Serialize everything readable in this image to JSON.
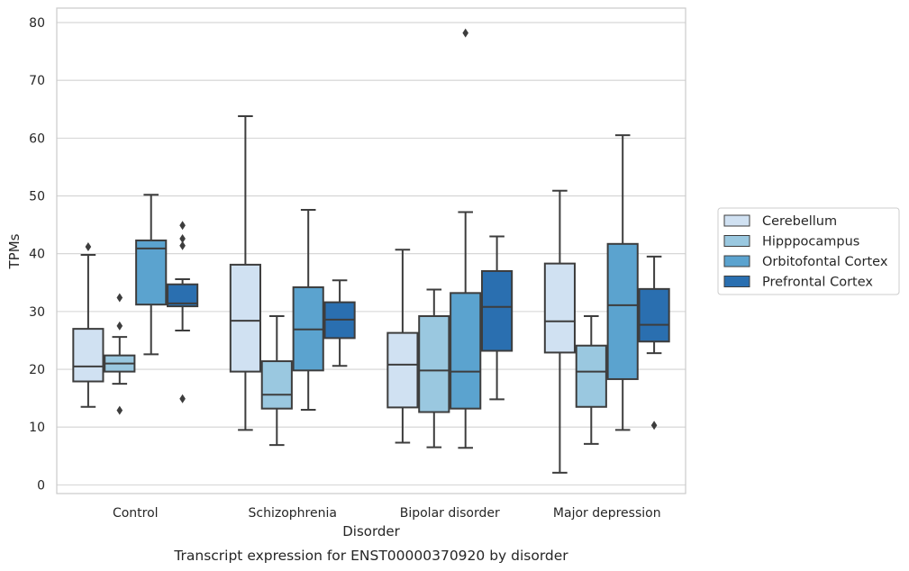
{
  "caption": "Transcript expression for ENST00000370920 by disorder",
  "chart_data": {
    "type": "box",
    "xlabel": "Disorder",
    "ylabel": "TPMs",
    "ylim": [
      -1.5,
      82.5
    ],
    "yticks": [
      0,
      10,
      20,
      30,
      40,
      50,
      60,
      70,
      80
    ],
    "grid": true,
    "legend_placement": "right",
    "categories": [
      "Control",
      "Schizophrenia",
      "Bipolar disorder",
      "Major depression"
    ],
    "series": [
      {
        "name": "Cerebellum",
        "color": "#d0e1f2",
        "boxes": [
          {
            "whisker_low": 13.5,
            "q1": 17.9,
            "median": 20.5,
            "q3": 27.0,
            "whisker_high": 39.8,
            "outliers": [
              41.2
            ]
          },
          {
            "whisker_low": 9.5,
            "q1": 19.6,
            "median": 28.4,
            "q3": 38.1,
            "whisker_high": 63.8,
            "outliers": []
          },
          {
            "whisker_low": 7.3,
            "q1": 13.4,
            "median": 20.8,
            "q3": 26.3,
            "whisker_high": 40.7,
            "outliers": []
          },
          {
            "whisker_low": 2.1,
            "q1": 22.9,
            "median": 28.3,
            "q3": 38.3,
            "whisker_high": 50.9,
            "outliers": []
          }
        ]
      },
      {
        "name": "Hipppocampus",
        "color": "#9ac8e0",
        "boxes": [
          {
            "whisker_low": 17.5,
            "q1": 19.6,
            "median": 21.0,
            "q3": 22.4,
            "whisker_high": 25.6,
            "outliers": [
              12.9,
              27.5,
              32.4
            ]
          },
          {
            "whisker_low": 6.9,
            "q1": 13.2,
            "median": 15.6,
            "q3": 21.4,
            "whisker_high": 29.2,
            "outliers": []
          },
          {
            "whisker_low": 6.5,
            "q1": 12.6,
            "median": 19.8,
            "q3": 29.2,
            "whisker_high": 33.8,
            "outliers": []
          },
          {
            "whisker_low": 7.1,
            "q1": 13.5,
            "median": 19.6,
            "q3": 24.1,
            "whisker_high": 29.2,
            "outliers": []
          }
        ]
      },
      {
        "name": "Orbitofontal Cortex",
        "color": "#5ba3cf",
        "boxes": [
          {
            "whisker_low": 22.6,
            "q1": 31.2,
            "median": 40.9,
            "q3": 42.3,
            "whisker_high": 50.2,
            "outliers": []
          },
          {
            "whisker_low": 13.0,
            "q1": 19.8,
            "median": 26.9,
            "q3": 34.2,
            "whisker_high": 47.6,
            "outliers": []
          },
          {
            "whisker_low": 6.4,
            "q1": 13.2,
            "median": 19.6,
            "q3": 33.2,
            "whisker_high": 47.2,
            "outliers": [
              78.2
            ]
          },
          {
            "whisker_low": 9.5,
            "q1": 18.3,
            "median": 31.1,
            "q3": 41.7,
            "whisker_high": 60.5,
            "outliers": []
          }
        ]
      },
      {
        "name": "Prefrontal Cortex",
        "color": "#2a6fb0",
        "boxes": [
          {
            "whisker_low": 26.7,
            "q1": 30.9,
            "median": 31.4,
            "q3": 34.7,
            "whisker_high": 35.6,
            "outliers": [
              14.9,
              41.4,
              42.6,
              44.9
            ]
          },
          {
            "whisker_low": 20.6,
            "q1": 25.4,
            "median": 28.6,
            "q3": 31.6,
            "whisker_high": 35.4,
            "outliers": []
          },
          {
            "whisker_low": 14.8,
            "q1": 23.2,
            "median": 30.8,
            "q3": 37.0,
            "whisker_high": 43.0,
            "outliers": []
          },
          {
            "whisker_low": 22.8,
            "q1": 24.8,
            "median": 27.7,
            "q3": 33.9,
            "whisker_high": 39.5,
            "outliers": [
              10.3
            ]
          }
        ]
      }
    ]
  }
}
